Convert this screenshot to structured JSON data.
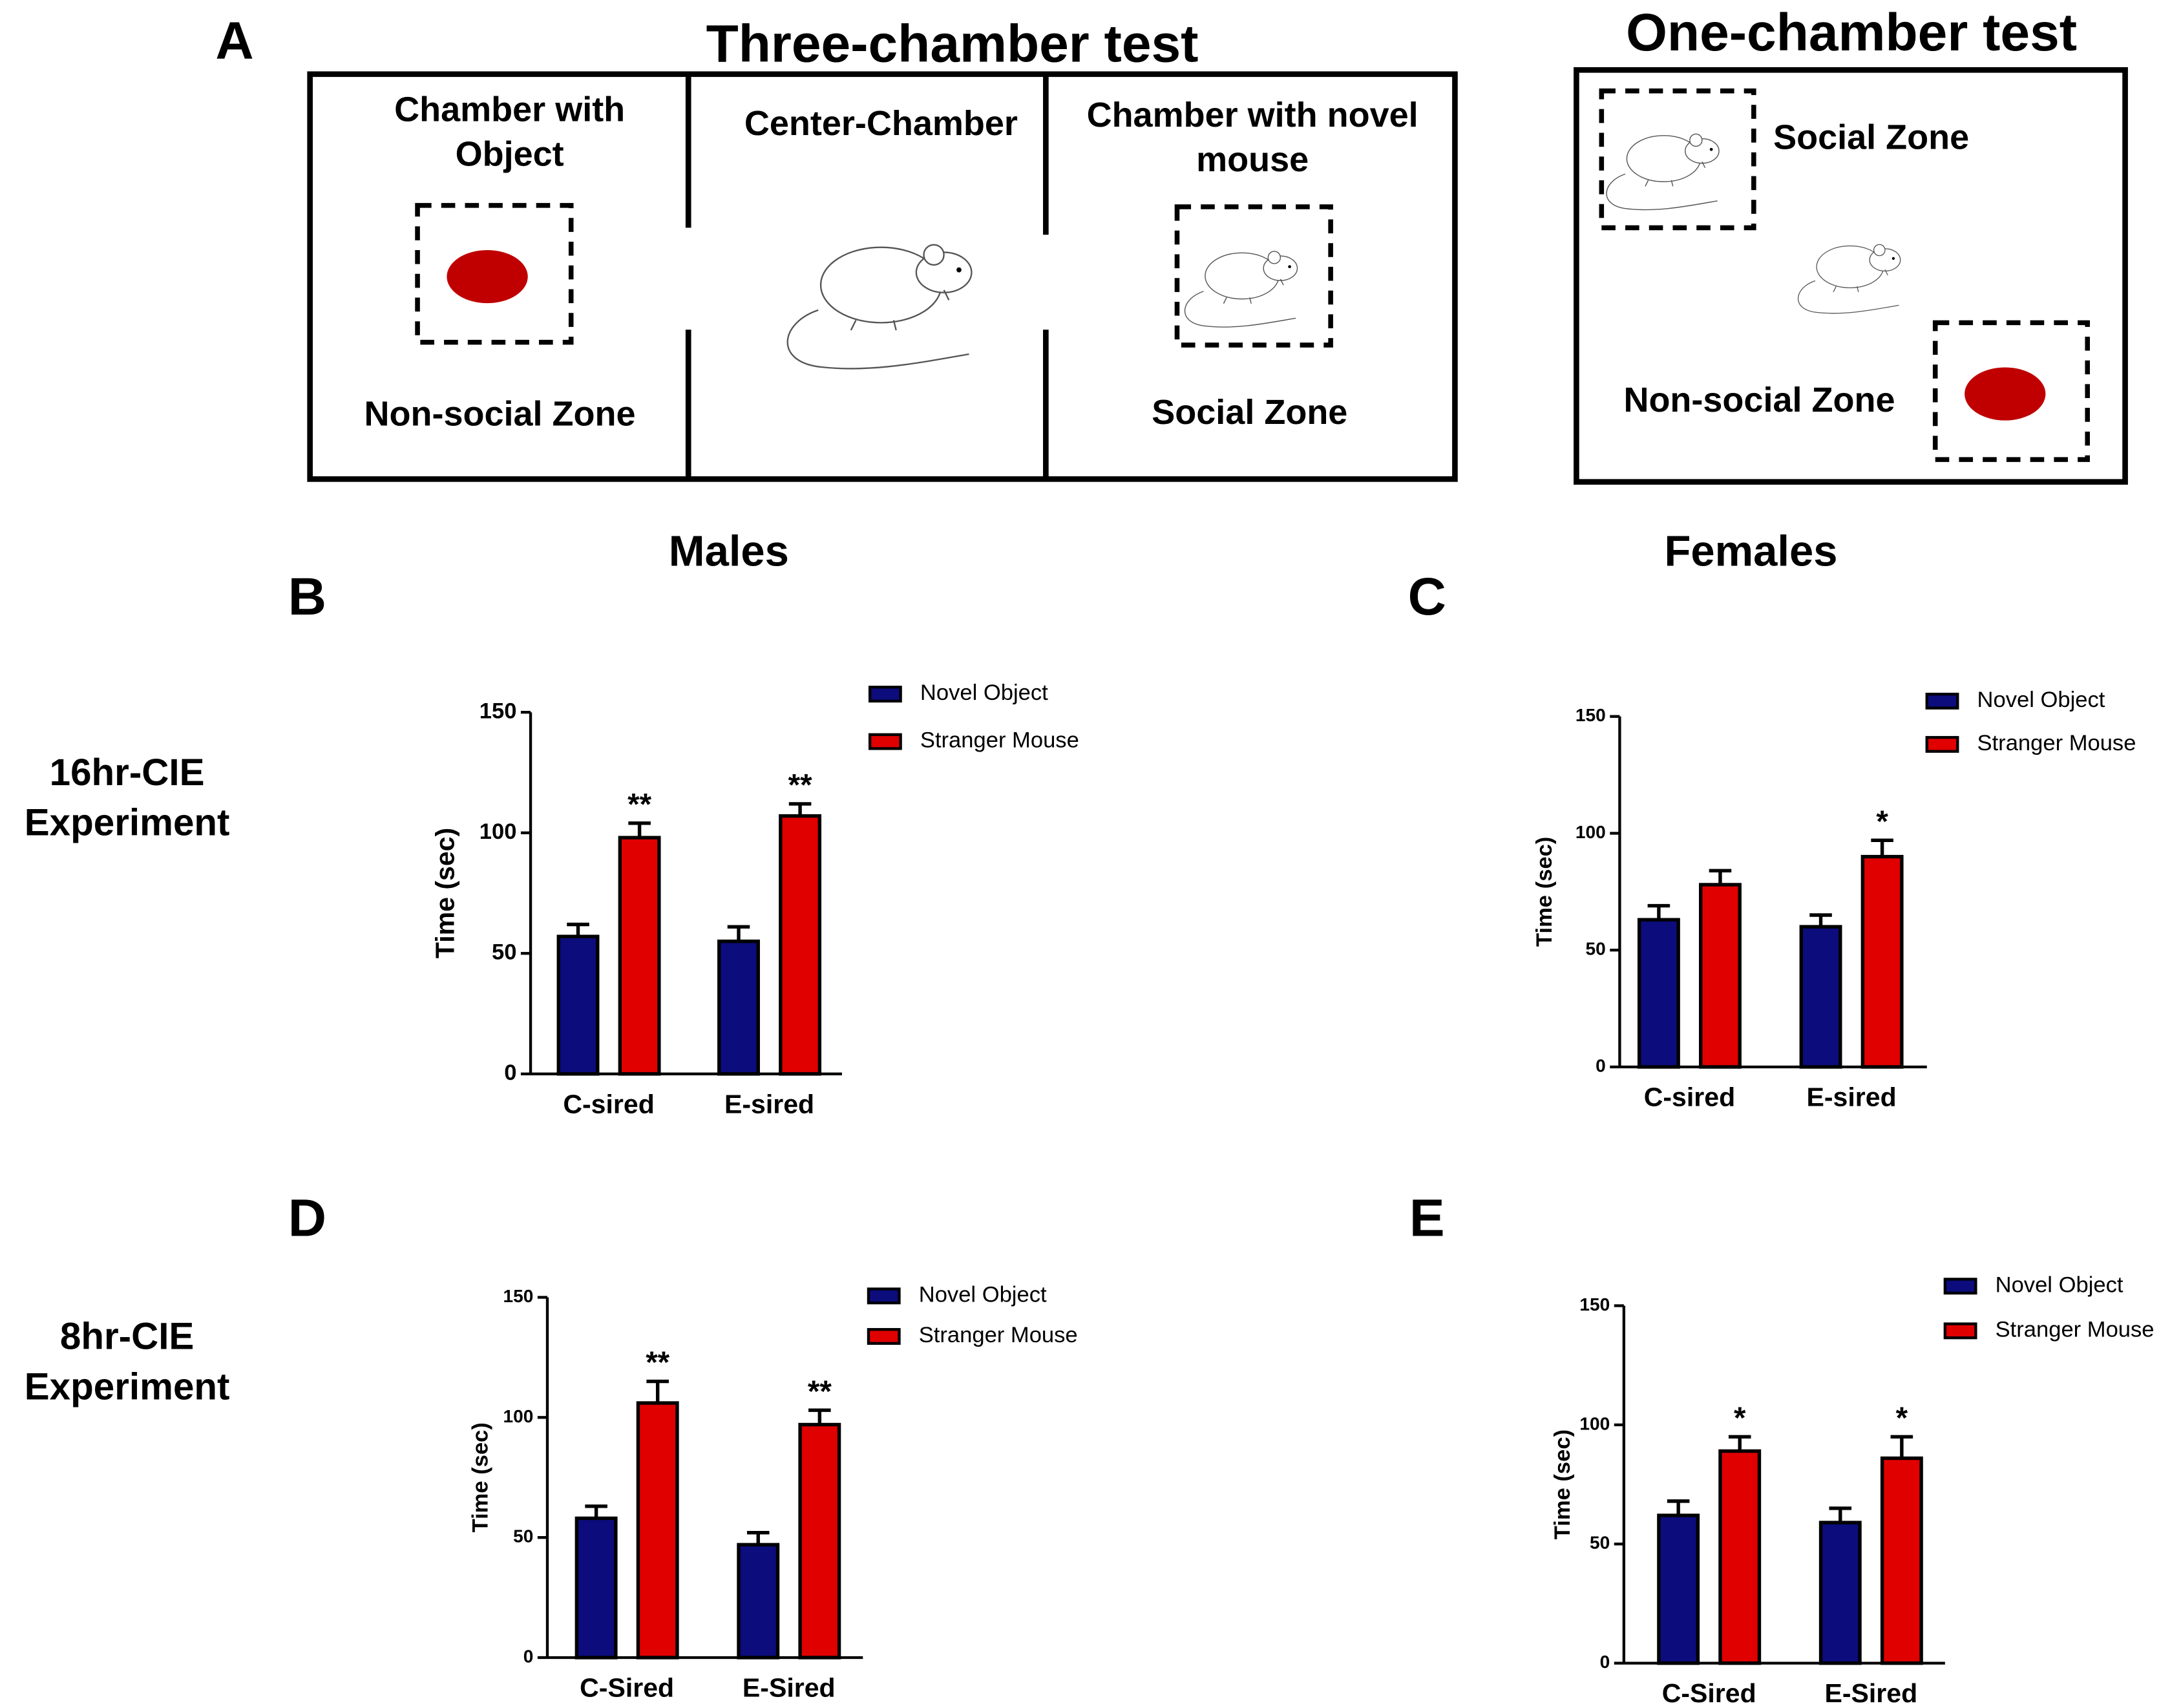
{
  "diagram": {
    "panel": "A",
    "three_chamber": {
      "title": "Three-chamber test",
      "left_label": [
        "Chamber with",
        "Object"
      ],
      "center_label": "Center-Chamber",
      "right_label": [
        "Chamber with novel",
        "mouse"
      ],
      "left_zone": "Non-social Zone",
      "right_zone": "Social Zone"
    },
    "one_chamber": {
      "title": "One-chamber test",
      "social_zone": "Social Zone",
      "nonsocial_zone": "Non-social Zone"
    }
  },
  "figure": {
    "column_titles": [
      "Males",
      "Females"
    ],
    "row_titles": [
      [
        "16hr-CIE",
        "Experiment"
      ],
      [
        "8hr-CIE",
        "Experiment"
      ]
    ]
  },
  "chart_data": [
    {
      "type": "bar",
      "panel": "B",
      "ylabel": "Time (sec)",
      "categories": [
        "C-sired",
        "E-sired"
      ],
      "series": [
        {
          "name": "Novel Object",
          "color": "#0c0c7c",
          "values": [
            57,
            55
          ],
          "errors": [
            5,
            6
          ]
        },
        {
          "name": "Stranger Mouse",
          "color": "#e00000",
          "values": [
            98,
            107
          ],
          "errors": [
            6,
            5
          ],
          "labels": [
            "**",
            "**"
          ]
        }
      ],
      "ylim": [
        0,
        150
      ],
      "yticks": [
        0,
        50,
        100,
        150
      ]
    },
    {
      "type": "bar",
      "panel": "C",
      "ylabel": "Time (sec)",
      "categories": [
        "C-sired",
        "E-sired"
      ],
      "series": [
        {
          "name": "Novel Object",
          "color": "#0c0c7c",
          "values": [
            63,
            60
          ],
          "errors": [
            6,
            5
          ]
        },
        {
          "name": "Stranger Mouse",
          "color": "#e00000",
          "values": [
            78,
            90
          ],
          "errors": [
            6,
            7
          ],
          "labels": [
            null,
            "*"
          ]
        }
      ],
      "ylim": [
        0,
        150
      ],
      "yticks": [
        0,
        50,
        100,
        150
      ]
    },
    {
      "type": "bar",
      "panel": "D",
      "ylabel": "Time (sec)",
      "categories": [
        "C-Sired",
        "E-Sired"
      ],
      "series": [
        {
          "name": "Novel Object",
          "color": "#0c0c7c",
          "values": [
            58,
            47
          ],
          "errors": [
            5,
            5
          ]
        },
        {
          "name": "Stranger Mouse",
          "color": "#e00000",
          "values": [
            106,
            97
          ],
          "errors": [
            9,
            6
          ],
          "labels": [
            "**",
            "**"
          ]
        }
      ],
      "ylim": [
        0,
        150
      ],
      "yticks": [
        0,
        50,
        100,
        150
      ]
    },
    {
      "type": "bar",
      "panel": "E",
      "ylabel": "Time (sec)",
      "categories": [
        "C-Sired",
        "E-Sired"
      ],
      "series": [
        {
          "name": "Novel Object",
          "color": "#0c0c7c",
          "values": [
            62,
            59
          ],
          "errors": [
            6,
            6
          ]
        },
        {
          "name": "Stranger Mouse",
          "color": "#e00000",
          "values": [
            89,
            86
          ],
          "errors": [
            6,
            9
          ],
          "labels": [
            "*",
            "*"
          ]
        }
      ],
      "ylim": [
        0,
        150
      ],
      "yticks": [
        0,
        50,
        100,
        150
      ]
    }
  ]
}
